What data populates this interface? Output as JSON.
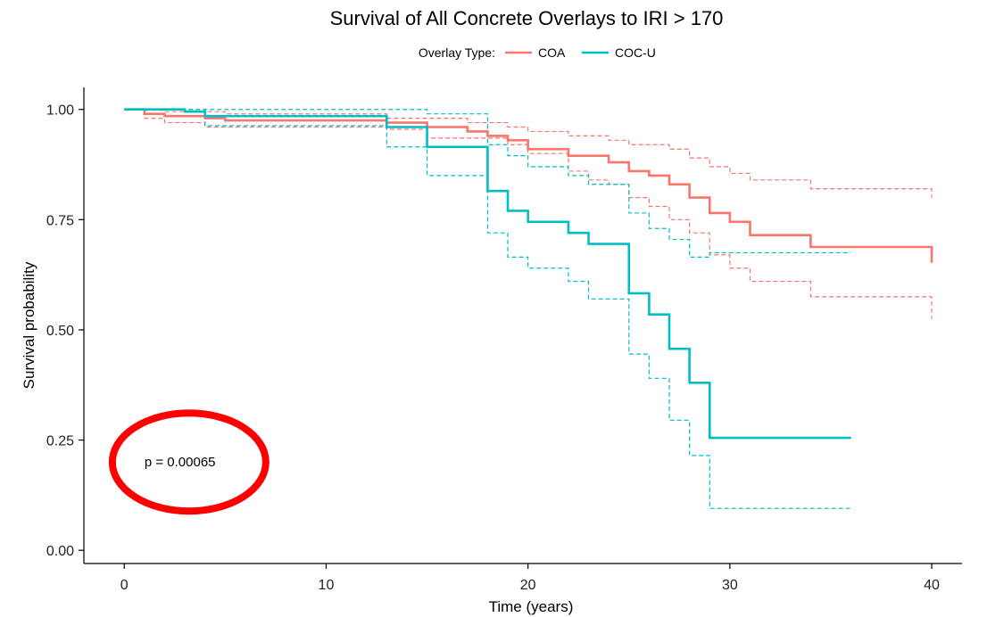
{
  "chart_data": {
    "type": "line",
    "subtype": "kaplan-meier step",
    "title": "Survival of All Concrete Overlays to IRI > 170",
    "legend": {
      "title": "Overlay Type:",
      "placement": "top",
      "entries": [
        "COA",
        "COC-U"
      ]
    },
    "xlabel": "Time (years)",
    "ylabel": "Survival probability",
    "xlim": [
      -2,
      41.5
    ],
    "ylim": [
      -0.03,
      1.05
    ],
    "xticks": [
      0,
      10,
      20,
      30,
      40
    ],
    "yticks": [
      0,
      0.25,
      0.5,
      0.75,
      1.0
    ],
    "xtick_labels": [
      "0",
      "10",
      "20",
      "30",
      "40"
    ],
    "ytick_labels": [
      "0.00",
      "0.25",
      "0.50",
      "0.75",
      "1.00"
    ],
    "grid": false,
    "series": [
      {
        "name": "COA",
        "color": "#F8766D",
        "estimate": {
          "x": [
            0,
            1,
            2,
            4,
            5,
            13,
            15,
            17,
            18,
            19,
            20,
            22,
            24,
            25,
            26,
            27,
            28,
            29,
            30,
            31,
            34,
            40
          ],
          "y": [
            1.0,
            0.99,
            0.985,
            0.98,
            0.975,
            0.97,
            0.96,
            0.95,
            0.94,
            0.93,
            0.91,
            0.895,
            0.88,
            0.86,
            0.85,
            0.83,
            0.8,
            0.765,
            0.745,
            0.715,
            0.688,
            0.652
          ]
        },
        "upper_ci": {
          "x": [
            0,
            1,
            2,
            5,
            13,
            17,
            19,
            20,
            22,
            24,
            25,
            27,
            28,
            29,
            30,
            31,
            34,
            40
          ],
          "y": [
            1.0,
            0.998,
            0.995,
            0.99,
            0.98,
            0.97,
            0.96,
            0.95,
            0.94,
            0.93,
            0.92,
            0.91,
            0.89,
            0.87,
            0.855,
            0.84,
            0.82,
            0.8
          ],
          "end": 40
        },
        "lower_ci": {
          "x": [
            0,
            1,
            2,
            4,
            13,
            15,
            19,
            20,
            22,
            23,
            24,
            25,
            26,
            27,
            28,
            29,
            30,
            31,
            34,
            40
          ],
          "y": [
            1.0,
            0.98,
            0.97,
            0.96,
            0.955,
            0.935,
            0.92,
            0.9,
            0.86,
            0.84,
            0.83,
            0.8,
            0.78,
            0.75,
            0.72,
            0.67,
            0.64,
            0.61,
            0.575,
            0.525
          ],
          "end": 40
        }
      },
      {
        "name": "COC-U",
        "color": "#00BFC4",
        "estimate": {
          "x": [
            0,
            3,
            4,
            13,
            15,
            18,
            19,
            20,
            22,
            23,
            25,
            26,
            27,
            28,
            29,
            36
          ],
          "y": [
            1.0,
            0.995,
            0.985,
            0.96,
            0.915,
            0.815,
            0.77,
            0.745,
            0.72,
            0.695,
            0.583,
            0.535,
            0.457,
            0.38,
            0.255,
            0.255
          ]
        },
        "upper_ci": {
          "x": [
            0,
            13,
            15,
            18,
            19,
            20,
            22,
            23,
            25,
            26,
            27,
            28,
            29,
            36
          ],
          "y": [
            1.0,
            1.0,
            0.99,
            0.92,
            0.895,
            0.87,
            0.85,
            0.83,
            0.765,
            0.73,
            0.705,
            0.665,
            0.675,
            0.675
          ],
          "end": 36
        },
        "lower_ci": {
          "x": [
            0,
            4,
            13,
            15,
            18,
            19,
            20,
            22,
            23,
            25,
            26,
            27,
            28,
            29,
            36
          ],
          "y": [
            1.0,
            0.963,
            0.915,
            0.85,
            0.72,
            0.665,
            0.64,
            0.61,
            0.57,
            0.445,
            0.39,
            0.295,
            0.215,
            0.095,
            0.095
          ],
          "end": 36
        }
      }
    ],
    "annotations": [
      {
        "text": "p = 0.00065",
        "x": 1.0,
        "y": 0.19,
        "highlight": "red ellipse"
      }
    ]
  }
}
